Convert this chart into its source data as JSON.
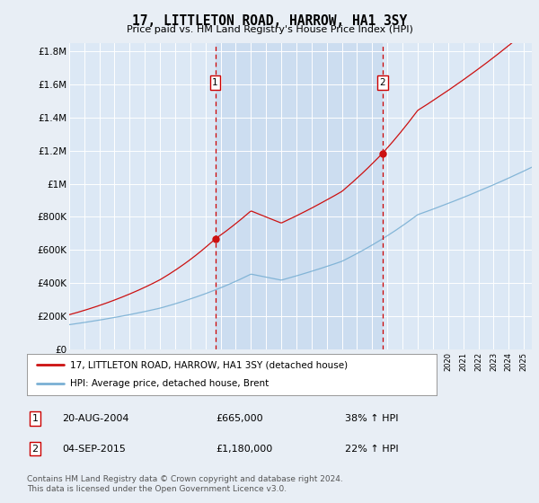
{
  "title": "17, LITTLETON ROAD, HARROW, HA1 3SY",
  "subtitle": "Price paid vs. HM Land Registry's House Price Index (HPI)",
  "background_color": "#e8eef5",
  "plot_bg_color": "#dce8f5",
  "highlight_color": "#ccddf0",
  "ylim": [
    0,
    1850000
  ],
  "yticks": [
    0,
    200000,
    400000,
    600000,
    800000,
    1000000,
    1200000,
    1400000,
    1600000,
    1800000
  ],
  "ytick_labels": [
    "£0",
    "£200K",
    "£400K",
    "£600K",
    "£800K",
    "£1M",
    "£1.2M",
    "£1.4M",
    "£1.6M",
    "£1.8M"
  ],
  "hpi_color": "#7ab0d4",
  "price_color": "#cc1111",
  "vline_color": "#cc0000",
  "sale1_year": 2004.64,
  "sale1_price": 665000,
  "sale2_year": 2015.67,
  "sale2_price": 1180000,
  "legend_label1": "17, LITTLETON ROAD, HARROW, HA1 3SY (detached house)",
  "legend_label2": "HPI: Average price, detached house, Brent",
  "annotation1_label": "1",
  "annotation1_date": "20-AUG-2004",
  "annotation1_price": "£665,000",
  "annotation1_hpi": "38% ↑ HPI",
  "annotation2_label": "2",
  "annotation2_date": "04-SEP-2015",
  "annotation2_price": "£1,180,000",
  "annotation2_hpi": "22% ↑ HPI",
  "footer": "Contains HM Land Registry data © Crown copyright and database right 2024.\nThis data is licensed under the Open Government Licence v3.0."
}
